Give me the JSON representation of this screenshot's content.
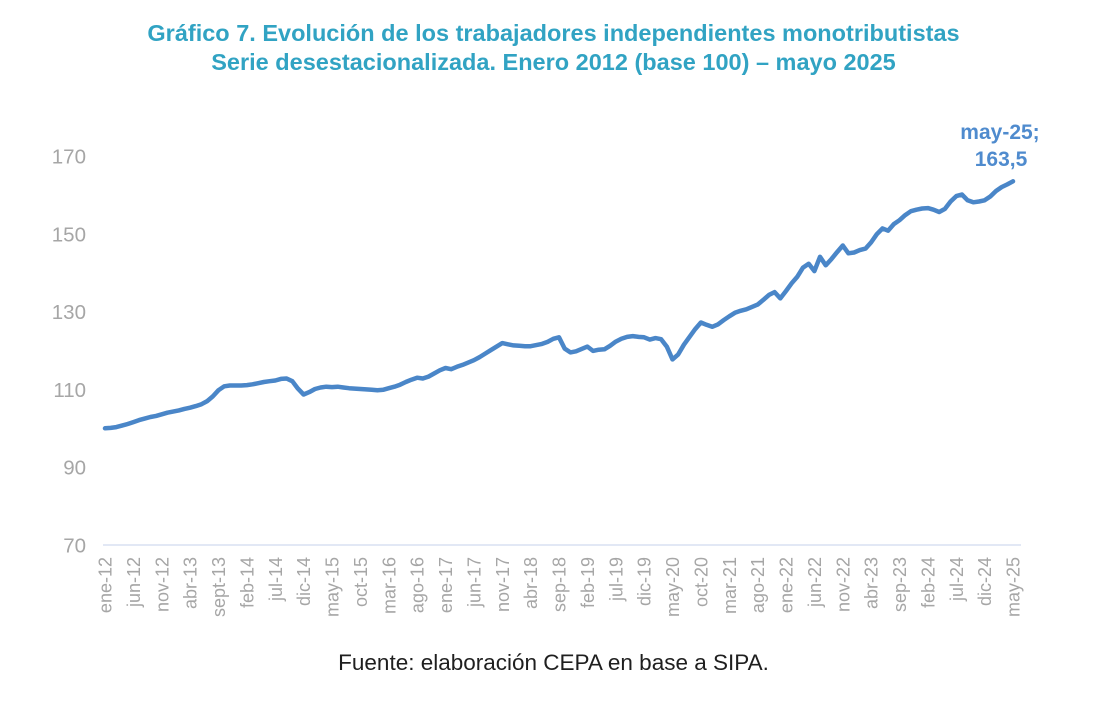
{
  "title": {
    "line1": "Gráfico 7. Evolución de los trabajadores independientes monotributistas",
    "line2": "Serie desestacionalizada. Enero 2012 (base 100) – mayo 2025"
  },
  "annotation": {
    "label": "may-25;",
    "value": "163,5"
  },
  "footer": {
    "source": "Fuente: elaboración CEPA en base a SIPA."
  },
  "colors": {
    "title": "#31a3c3",
    "line": "#4a86c8",
    "annotation": "#4f8bce",
    "axis_labels": "#a6a6a6",
    "baseline": "#d9e1f2",
    "footer_text": "#1f1f1f"
  },
  "chart_data": {
    "type": "line",
    "title": "Gráfico 7. Evolución de los trabajadores independientes monotributistas — Serie desestacionalizada. Enero 2012 (base 100) – mayo 2025",
    "xlabel": "",
    "ylabel": "",
    "grid": false,
    "legend": false,
    "ylim": [
      70,
      170
    ],
    "y_ticks": [
      170,
      150,
      130,
      110,
      90,
      70
    ],
    "tick_interval_months": 5,
    "x_tick_labels": [
      "ene-12",
      "jun-12",
      "nov-12",
      "abr-13",
      "sept-13",
      "feb-14",
      "jul-14",
      "dic-14",
      "may-15",
      "oct-15",
      "mar-16",
      "ago-16",
      "ene-17",
      "jun-17",
      "nov-17",
      "abr-18",
      "sep-18",
      "feb-19",
      "jul-19",
      "dic-19",
      "may-20",
      "oct-20",
      "mar-21",
      "ago-21",
      "ene-22",
      "jun-22",
      "nov-22",
      "abr-23",
      "sep-23",
      "feb-24",
      "jul-24",
      "dic-24",
      "may-25"
    ],
    "values": [
      100,
      100.1,
      100.3,
      100.7,
      101.1,
      101.6,
      102.1,
      102.5,
      102.9,
      103.2,
      103.6,
      104,
      104.3,
      104.6,
      105,
      105.3,
      105.7,
      106.2,
      107,
      108.2,
      109.8,
      110.8,
      111,
      111,
      111,
      111.1,
      111.3,
      111.6,
      111.9,
      112.1,
      112.3,
      112.7,
      112.8,
      112.1,
      110.2,
      108.7,
      109.3,
      110.1,
      110.5,
      110.7,
      110.6,
      110.7,
      110.5,
      110.3,
      110.2,
      110.1,
      110,
      109.9,
      109.8,
      109.9,
      110.3,
      110.7,
      111.2,
      111.9,
      112.5,
      113,
      112.8,
      113.3,
      114.1,
      114.9,
      115.5,
      115.2,
      115.8,
      116.3,
      116.9,
      117.5,
      118.3,
      119.2,
      120.1,
      121,
      121.9,
      121.6,
      121.3,
      121.2,
      121.1,
      121.1,
      121.4,
      121.7,
      122.2,
      123,
      123.4,
      120.5,
      119.5,
      119.8,
      120.4,
      121,
      119.9,
      120.2,
      120.3,
      121.2,
      122.3,
      123,
      123.5,
      123.7,
      123.5,
      123.4,
      122.8,
      123.2,
      122.9,
      121,
      117.7,
      119,
      121.5,
      123.5,
      125.5,
      127.2,
      126.6,
      126.1,
      126.7,
      127.8,
      128.8,
      129.7,
      130.2,
      130.6,
      131.2,
      131.8,
      133,
      134.3,
      135,
      133.4,
      135.3,
      137.3,
      139,
      141.3,
      142.3,
      140.4,
      144.1,
      141.9,
      143.5,
      145.3,
      147,
      145,
      145.2,
      145.8,
      146.2,
      147.8,
      149.9,
      151.4,
      150.8,
      152.5,
      153.5,
      154.8,
      155.8,
      156.2,
      156.5,
      156.6,
      156.2,
      155.6,
      156.4,
      158.3,
      159.7,
      160.1,
      158.6,
      158.1,
      158.3,
      158.6,
      159.6,
      161,
      162,
      162.7,
      163.5
    ],
    "last_point": {
      "x": "may-25",
      "y": 163.5
    }
  }
}
